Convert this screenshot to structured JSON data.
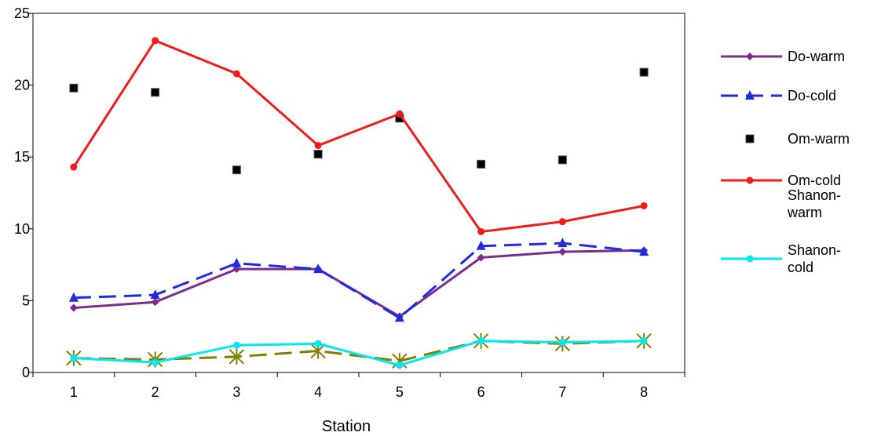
{
  "chart_data": {
    "type": "line",
    "xlabel": "Station",
    "ylabel": "",
    "ylim": [
      0,
      25
    ],
    "yticks": [
      "0",
      "5",
      "10",
      "15",
      "20",
      "25"
    ],
    "categories": [
      "1",
      "2",
      "3",
      "4",
      "5",
      "6",
      "7",
      "8"
    ],
    "grid": false,
    "legend_position": "right",
    "series": [
      {
        "name": "Do-warm",
        "values": [
          4.5,
          4.9,
          7.2,
          7.2,
          3.9,
          8.0,
          8.4,
          8.5
        ],
        "color": "#7B2D8B",
        "marker": "diamond",
        "line": "solid",
        "in_legend": true,
        "legend_lines": [
          "Do-warm"
        ]
      },
      {
        "name": "Do-cold",
        "values": [
          5.2,
          5.4,
          7.6,
          7.2,
          3.8,
          8.8,
          9.0,
          8.4
        ],
        "color": "#1F2BDF",
        "marker": "triangle",
        "line": "dashed",
        "in_legend": true,
        "legend_lines": [
          "Do-cold"
        ]
      },
      {
        "name": "Om-warm",
        "values": [
          19.8,
          19.5,
          14.1,
          15.2,
          17.7,
          14.5,
          14.8,
          20.9
        ],
        "color": "#000000",
        "marker": "square",
        "line": "none",
        "in_legend": true,
        "legend_lines": [
          "Om-warm"
        ]
      },
      {
        "name": "Om-cold",
        "values": [
          14.3,
          23.1,
          20.8,
          15.8,
          18.0,
          9.8,
          10.5,
          11.6
        ],
        "color": "#EE1C1C",
        "marker": "circle",
        "line": "solid",
        "in_legend": true,
        "legend_lines": [
          "Om-cold"
        ]
      },
      {
        "name": "Shanon-warm",
        "values": [
          1.0,
          0.9,
          1.1,
          1.5,
          0.8,
          2.2,
          2.0,
          2.2
        ],
        "color": "#7F7F00",
        "marker": "star",
        "line": "dashed",
        "in_legend": true,
        "legend_lines": [
          "Shanon-",
          "warm"
        ]
      },
      {
        "name": "Shanon-cold",
        "values": [
          1.0,
          0.7,
          1.9,
          2.0,
          0.5,
          2.2,
          2.1,
          2.2
        ],
        "color": "#00E8F0",
        "marker": "circle",
        "line": "solid",
        "in_legend": true,
        "legend_lines": [
          "Shanon-",
          "cold"
        ]
      }
    ]
  }
}
